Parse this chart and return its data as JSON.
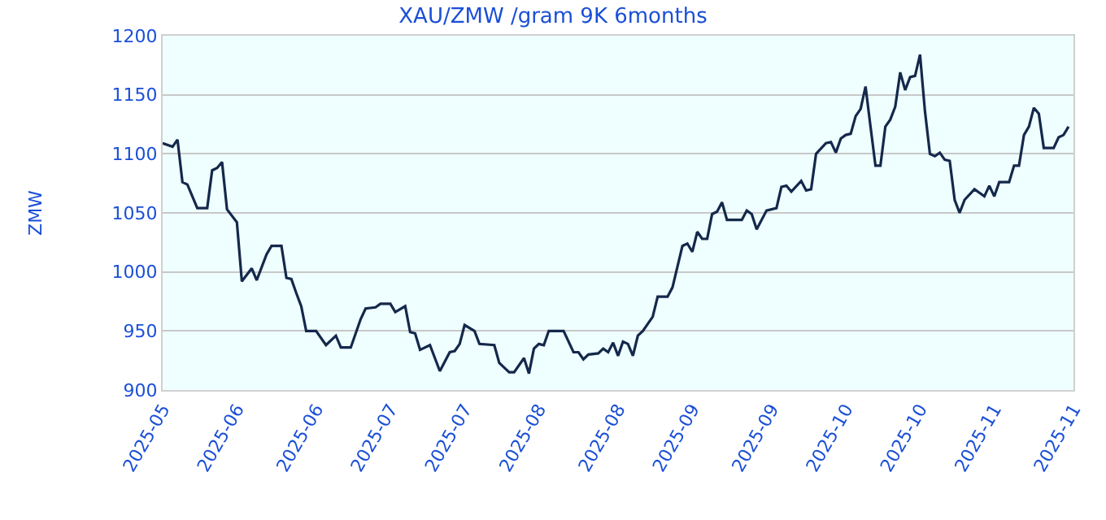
{
  "chart_data": {
    "type": "line",
    "title": "XAU/ZMW /gram 9K 6months",
    "ylabel": "ZMW",
    "xlim": [
      "2025-05-08",
      "2025-11-08"
    ],
    "xticks": [
      {
        "value": "2025-05-08",
        "label": "2025-05"
      },
      {
        "value": "2025-05-23",
        "label": "2025-06"
      },
      {
        "value": "2025-06-08",
        "label": "2025-06"
      },
      {
        "value": "2025-06-23",
        "label": "2025-07"
      },
      {
        "value": "2025-07-08",
        "label": "2025-07"
      },
      {
        "value": "2025-07-23",
        "label": "2025-08"
      },
      {
        "value": "2025-08-08",
        "label": "2025-08"
      },
      {
        "value": "2025-08-23",
        "label": "2025-09"
      },
      {
        "value": "2025-09-08",
        "label": "2025-09"
      },
      {
        "value": "2025-09-23",
        "label": "2025-10"
      },
      {
        "value": "2025-10-08",
        "label": "2025-10"
      },
      {
        "value": "2025-10-23",
        "label": "2025-11"
      },
      {
        "value": "2025-11-08",
        "label": "2025-11"
      }
    ],
    "ylim": [
      900,
      1200
    ],
    "yticks": [
      900,
      950,
      1000,
      1050,
      1100,
      1150,
      1200
    ],
    "grid": "y",
    "marker": "none",
    "line_style": "solid",
    "series": [
      {
        "color": "#14284b",
        "x": [
          "2025-05-08",
          "2025-05-10",
          "2025-05-11",
          "2025-05-12",
          "2025-05-13",
          "2025-05-15",
          "2025-05-17",
          "2025-05-18",
          "2025-05-19",
          "2025-05-20",
          "2025-05-21",
          "2025-05-23",
          "2025-05-24",
          "2025-05-26",
          "2025-05-27",
          "2025-05-29",
          "2025-05-30",
          "2025-06-01",
          "2025-06-02",
          "2025-06-03",
          "2025-06-04",
          "2025-06-05",
          "2025-06-06",
          "2025-06-08",
          "2025-06-10",
          "2025-06-12",
          "2025-06-13",
          "2025-06-15",
          "2025-06-17",
          "2025-06-18",
          "2025-06-20",
          "2025-06-21",
          "2025-06-23",
          "2025-06-24",
          "2025-06-26",
          "2025-06-27",
          "2025-06-28",
          "2025-06-29",
          "2025-07-01",
          "2025-07-03",
          "2025-07-05",
          "2025-07-06",
          "2025-07-07",
          "2025-07-08",
          "2025-07-10",
          "2025-07-11",
          "2025-07-14",
          "2025-07-15",
          "2025-07-17",
          "2025-07-18",
          "2025-07-20",
          "2025-07-21",
          "2025-07-22",
          "2025-07-23",
          "2025-07-24",
          "2025-07-25",
          "2025-07-28",
          "2025-07-30",
          "2025-07-31",
          "2025-08-01",
          "2025-08-02",
          "2025-08-04",
          "2025-08-05",
          "2025-08-06",
          "2025-08-07",
          "2025-08-08",
          "2025-08-09",
          "2025-08-10",
          "2025-08-11",
          "2025-08-12",
          "2025-08-13",
          "2025-08-15",
          "2025-08-16",
          "2025-08-18",
          "2025-08-19",
          "2025-08-21",
          "2025-08-22",
          "2025-08-23",
          "2025-08-24",
          "2025-08-25",
          "2025-08-26",
          "2025-08-27",
          "2025-08-28",
          "2025-08-29",
          "2025-08-30",
          "2025-09-02",
          "2025-09-03",
          "2025-09-04",
          "2025-09-05",
          "2025-09-07",
          "2025-09-09",
          "2025-09-10",
          "2025-09-11",
          "2025-09-12",
          "2025-09-14",
          "2025-09-15",
          "2025-09-16",
          "2025-09-17",
          "2025-09-19",
          "2025-09-20",
          "2025-09-21",
          "2025-09-22",
          "2025-09-23",
          "2025-09-24",
          "2025-09-25",
          "2025-09-26",
          "2025-09-27",
          "2025-09-28",
          "2025-09-29",
          "2025-09-30",
          "2025-10-01",
          "2025-10-02",
          "2025-10-03",
          "2025-10-04",
          "2025-10-05",
          "2025-10-06",
          "2025-10-07",
          "2025-10-08",
          "2025-10-09",
          "2025-10-10",
          "2025-10-11",
          "2025-10-12",
          "2025-10-13",
          "2025-10-14",
          "2025-10-15",
          "2025-10-16",
          "2025-10-17",
          "2025-10-19",
          "2025-10-20",
          "2025-10-21",
          "2025-10-22",
          "2025-10-23",
          "2025-10-24",
          "2025-10-26",
          "2025-10-27",
          "2025-10-28",
          "2025-10-29",
          "2025-10-30",
          "2025-10-31",
          "2025-11-01",
          "2025-11-02",
          "2025-11-04",
          "2025-11-05",
          "2025-11-06",
          "2025-11-07"
        ],
        "values": [
          1109,
          1106,
          1112,
          1076,
          1074,
          1054,
          1054,
          1086,
          1088,
          1093,
          1053,
          1042,
          992,
          1003,
          993,
          1015,
          1022,
          1022,
          995,
          994,
          982,
          971,
          950,
          950,
          938,
          946,
          936,
          936,
          960,
          969,
          970,
          973,
          973,
          966,
          971,
          949,
          948,
          934,
          938,
          916,
          932,
          933,
          939,
          955,
          950,
          939,
          938,
          923,
          915,
          915,
          927,
          914,
          935,
          939,
          938,
          950,
          950,
          932,
          932,
          926,
          930,
          931,
          935,
          932,
          940,
          929,
          941,
          939,
          929,
          946,
          950,
          962,
          979,
          979,
          987,
          1022,
          1024,
          1017,
          1034,
          1028,
          1028,
          1049,
          1051,
          1059,
          1044,
          1044,
          1052,
          1049,
          1036,
          1052,
          1054,
          1072,
          1073,
          1068,
          1077,
          1069,
          1070,
          1100,
          1109,
          1110,
          1101,
          1113,
          1116,
          1117,
          1132,
          1138,
          1157,
          1123,
          1090,
          1090,
          1123,
          1129,
          1140,
          1169,
          1154,
          1165,
          1166,
          1184,
          1136,
          1100,
          1098,
          1101,
          1095,
          1094,
          1061,
          1050,
          1061,
          1070,
          1067,
          1064,
          1073,
          1064,
          1076,
          1076,
          1090,
          1090,
          1116,
          1123,
          1139,
          1134,
          1105,
          1105,
          1114,
          1116,
          1123
        ]
      }
    ]
  }
}
